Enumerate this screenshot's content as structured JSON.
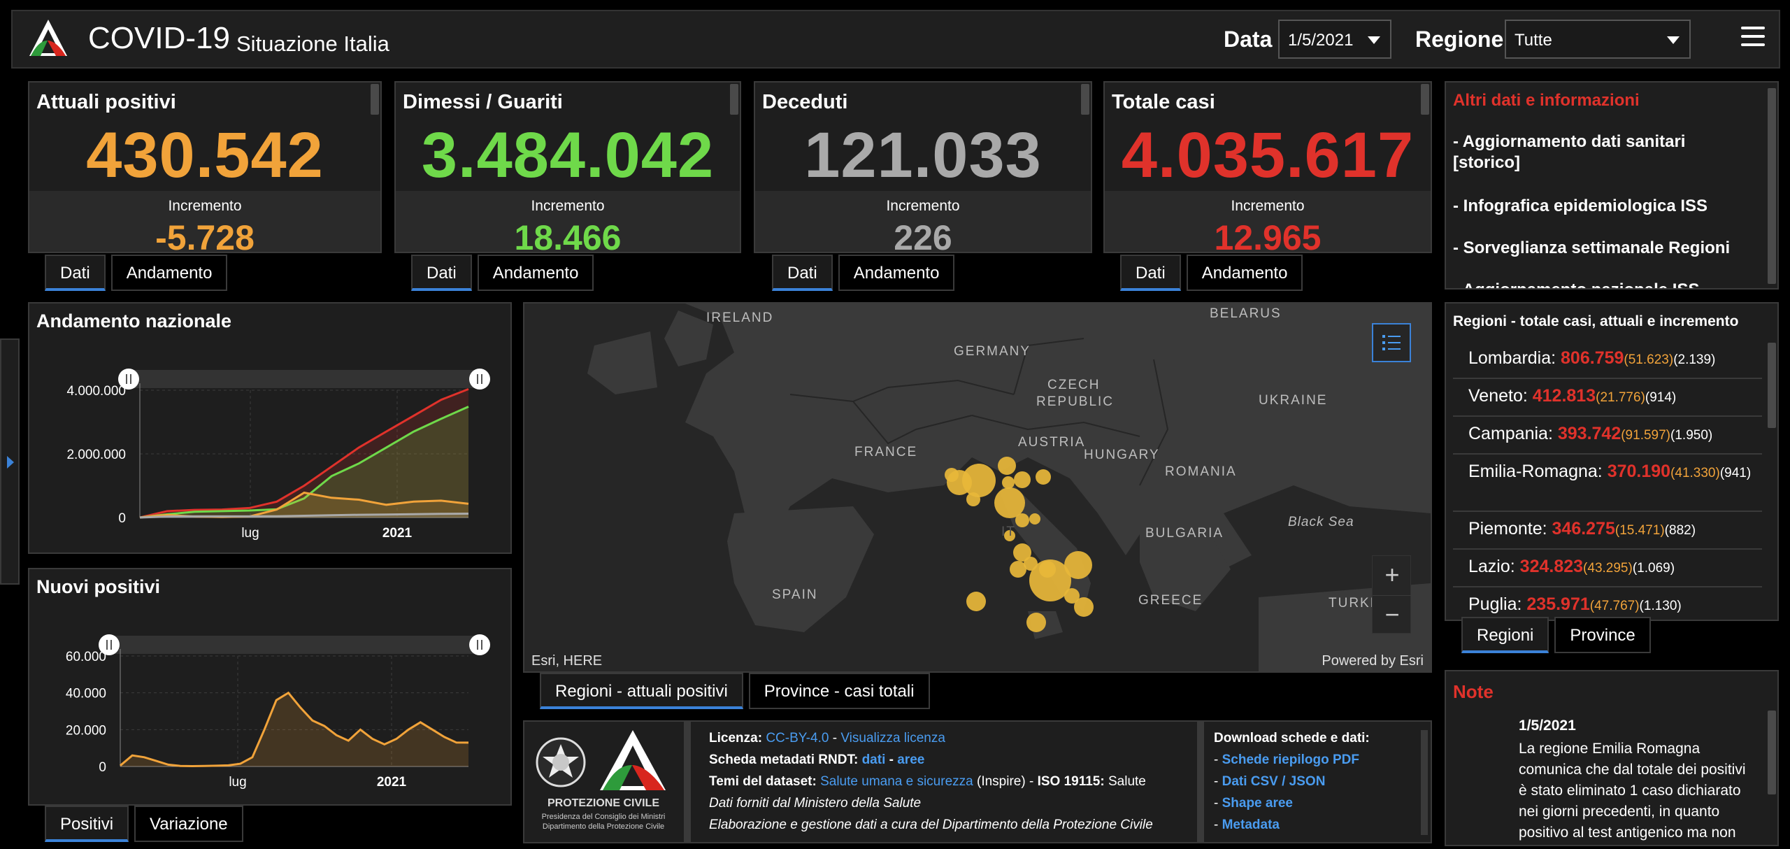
{
  "header": {
    "title": "COVID-19",
    "subtitle": "Situazione Italia",
    "date_label": "Data",
    "date_value": "1/5/2021",
    "region_label": "Regione",
    "region_value": "Tutte"
  },
  "cards": [
    {
      "title": "Attuali positivi",
      "value": "430.542",
      "inc_label": "Incremento",
      "increment": "-5.728",
      "color": "#f1a33a",
      "tabs": [
        "Dati",
        "Andamento"
      ]
    },
    {
      "title": "Dimessi / Guariti",
      "value": "3.484.042",
      "inc_label": "Incremento",
      "increment": "18.466",
      "color": "#6fd94a",
      "tabs": [
        "Dati",
        "Andamento"
      ]
    },
    {
      "title": "Deceduti",
      "value": "121.033",
      "inc_label": "Incremento",
      "increment": "226",
      "color": "#a9a9a9",
      "tabs": [
        "Dati",
        "Andamento"
      ]
    },
    {
      "title": "Totale casi",
      "value": "4.035.617",
      "inc_label": "Incremento",
      "increment": "12.965",
      "color": "#e0322b",
      "tabs": [
        "Dati",
        "Andamento"
      ]
    }
  ],
  "info": {
    "title": "Altri dati e informazioni",
    "links": [
      "- Aggiornamento dati sanitari [storico]",
      "- Infografica epidemiologica ISS",
      "- Sorveglianza settimanale Regioni",
      "- Aggiornamento nazionale ISS"
    ]
  },
  "regions": {
    "title": "Regioni - totale casi, attuali e incremento",
    "rows": [
      {
        "name": "Lombardia:",
        "total": "806.759",
        "active": "(51.623)",
        "inc": "(2.139)"
      },
      {
        "name": "Veneto:",
        "total": "412.813",
        "active": "(21.776)",
        "inc": "(914)"
      },
      {
        "name": "Campania:",
        "total": "393.742",
        "active": "(91.597)",
        "inc": "(1.950)"
      },
      {
        "name": "Emilia-Romagna:",
        "total": "370.190",
        "active": "(41.330)",
        "inc": "(941)"
      },
      {
        "name": "Piemonte:",
        "total": "346.275",
        "active": "(15.471)",
        "inc": "(882)"
      },
      {
        "name": "Lazio:",
        "total": "324.823",
        "active": "(43.295)",
        "inc": "(1.069)"
      },
      {
        "name": "Puglia:",
        "total": "235.971",
        "active": "(47.767)",
        "inc": "(1.130)"
      }
    ],
    "tabs": [
      "Regioni",
      "Province"
    ]
  },
  "map": {
    "labels": [
      "IRELAND",
      "GERMANY",
      "CZECH",
      "REPUBLIC",
      "FRANCE",
      "AUSTRIA",
      "HUNGARY",
      "ROMANIA",
      "UKRAINE",
      "BELARUS",
      "SPAIN",
      "BULGARIA",
      "GREECE",
      "TURKE",
      "Black Sea",
      "IT"
    ],
    "attribution_left": "Esri, HERE",
    "attribution_right": "Powered by Esri",
    "tabs": [
      "Regioni - attuali positivi",
      "Province - casi totali"
    ]
  },
  "note": {
    "title": "Note",
    "date": "1/5/2021",
    "text": "La regione Emilia Romagna comunica che dal totale dei positivi è stato eliminato 1 caso dichiarato nei giorni precedenti, in quanto positivo al test antigenico ma non"
  },
  "license": {
    "licenza_label": "Licenza:",
    "licenza_link": "CC-BY-4.0",
    "licenza_sep": " - ",
    "licenza_view": "Visualizza licenza",
    "scheda_label": "Scheda metadati RNDT:",
    "scheda_dati": "dati",
    "scheda_sep": " - ",
    "scheda_aree": "aree",
    "temi_label": "Temi del dataset:",
    "temi_link": "Salute umana e sicurezza",
    "temi_rest": " (Inspire) - ",
    "iso_label": "ISO 19115:",
    "iso_value": " Salute",
    "line4": "Dati forniti dal Ministero della Salute",
    "line5": "Elaborazione e gestione dati a cura del Dipartimento della Protezione Civile",
    "download_title": "Download schede e dati:",
    "downloads": [
      "Schede riepilogo PDF",
      "Dati CSV / JSON",
      "Shape aree",
      "Metadata"
    ],
    "logo_text": "PROTEZIONE CIVILE",
    "logo_sub1": "Presidenza del Consiglio dei Ministri",
    "logo_sub2": "Dipartimento della Protezione Civile"
  },
  "chart_data": [
    {
      "type": "line",
      "title": "Andamento nazionale",
      "x_ticks": [
        "lug",
        "2021"
      ],
      "y_ticks": [
        "4.000.000",
        "2.000.000",
        "0"
      ],
      "ylim": [
        0,
        4000000
      ],
      "series": [
        {
          "name": "Totale casi",
          "color": "#e0322b",
          "values": [
            0,
            200000,
            240000,
            250000,
            300000,
            500000,
            1000000,
            1600000,
            2200000,
            2700000,
            3200000,
            3700000,
            4035617
          ]
        },
        {
          "name": "Dimessi / Guariti",
          "color": "#6fd94a",
          "values": [
            0,
            100000,
            180000,
            200000,
            220000,
            260000,
            600000,
            1300000,
            1700000,
            2200000,
            2700000,
            3100000,
            3484042
          ]
        },
        {
          "name": "Attuali positivi",
          "color": "#f1a33a",
          "values": [
            0,
            80000,
            30000,
            15000,
            30000,
            250000,
            780000,
            620000,
            560000,
            400000,
            500000,
            530000,
            430542
          ]
        },
        {
          "name": "Deceduti",
          "color": "#a9a9a9",
          "values": [
            0,
            30000,
            35000,
            35000,
            36000,
            40000,
            55000,
            70000,
            85000,
            95000,
            105000,
            115000,
            121033
          ]
        }
      ]
    },
    {
      "type": "area",
      "title": "Nuovi positivi",
      "x_ticks": [
        "lug",
        "2021"
      ],
      "y_ticks": [
        "60.000",
        "40.000",
        "20.000",
        "0"
      ],
      "ylim": [
        0,
        60000
      ],
      "series": [
        {
          "name": "Nuovi positivi",
          "color": "#f1a33a",
          "values": [
            500,
            6000,
            5000,
            3000,
            1000,
            300,
            200,
            300,
            400,
            600,
            1500,
            5000,
            20000,
            36000,
            40000,
            32000,
            25000,
            22000,
            17000,
            14000,
            20000,
            15000,
            12000,
            15000,
            20000,
            24000,
            20000,
            16000,
            13000,
            12965
          ]
        }
      ],
      "tabs": [
        "Positivi",
        "Variazione"
      ]
    }
  ]
}
